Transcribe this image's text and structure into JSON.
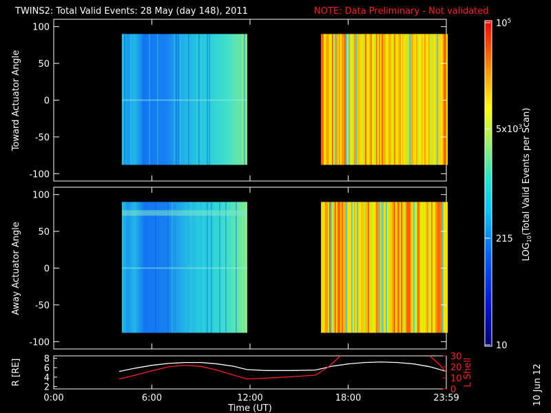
{
  "header": {
    "title": "TWINS2: Total Valid Events: 28 May (day 148), 2011",
    "note": "NOTE: Data Preliminary - Not validated"
  },
  "colors": {
    "background": "#000000",
    "note": "#ff2020",
    "r_line": "#ffffff",
    "lshell_line": "#ff2020",
    "axis": "#ffffff"
  },
  "stamp": "10 Jun 12",
  "chart_data": [
    {
      "type": "heatmap",
      "panel": "toward",
      "ylabel": "Toward Actuator Angle",
      "ylim": [
        -110,
        110
      ],
      "yticks": [
        "100",
        "50",
        "0",
        "-50",
        "-100"
      ],
      "xlim_hours": [
        0,
        24
      ],
      "data_blocks": [
        {
          "start": "04:10",
          "end": "11:50",
          "angle_range": [
            -88,
            90
          ],
          "level": "low",
          "approx_events": [
            150,
            1500
          ]
        },
        {
          "start": "16:20",
          "end": "24:00",
          "angle_range": [
            -88,
            90
          ],
          "level": "high",
          "approx_events": [
            3000,
            60000
          ]
        }
      ]
    },
    {
      "type": "heatmap",
      "panel": "away",
      "ylabel": "Away Actuator Angle",
      "ylim": [
        -110,
        110
      ],
      "yticks": [
        "100",
        "50",
        "0",
        "-50",
        "-100"
      ],
      "xlim_hours": [
        0,
        24
      ],
      "data_blocks": [
        {
          "start": "04:10",
          "end": "11:50",
          "angle_range": [
            -88,
            90
          ],
          "level": "low",
          "approx_events": [
            150,
            1500
          ]
        },
        {
          "start": "16:20",
          "end": "24:00",
          "angle_range": [
            -88,
            90
          ],
          "level": "high",
          "approx_events": [
            3000,
            60000
          ]
        }
      ]
    },
    {
      "type": "line",
      "panel": "orbit",
      "xlabel": "Time (UT)",
      "xticks": [
        "0:00",
        "6:00",
        "12:00",
        "18:00",
        "23:59"
      ],
      "ylabel_left": "R [RE]",
      "ylabel_right": "L Shell",
      "yticks_left": [
        "8",
        "6",
        "4",
        "2"
      ],
      "yticks_right": [
        "30",
        "20",
        "10",
        "0"
      ],
      "ylim_left": [
        1.5,
        8.5
      ],
      "ylim_right": [
        0,
        30
      ],
      "series": [
        {
          "axis": "left",
          "x": [
            4.0,
            5.0,
            6.0,
            7.0,
            8.0,
            9.0,
            10.0,
            11.0,
            11.8,
            13.0,
            14.5,
            16.0,
            17.0,
            18.0,
            19.0,
            20.0,
            21.0,
            22.0,
            23.0,
            24.0
          ],
          "y": [
            5.2,
            5.9,
            6.5,
            6.9,
            7.1,
            7.1,
            6.8,
            6.3,
            5.6,
            5.4,
            5.4,
            5.5,
            6.3,
            6.8,
            7.1,
            7.2,
            7.1,
            6.8,
            6.2,
            5.2
          ]
        },
        {
          "axis": "right",
          "x": [
            4.0,
            5.0,
            6.0,
            7.0,
            8.0,
            9.0,
            10.0,
            11.0,
            11.8,
            13.0,
            14.5,
            16.0,
            16.8,
            17.6,
            22.9,
            23.6,
            24.0
          ],
          "y": [
            9.0,
            12.5,
            16.5,
            20.0,
            21.5,
            20.5,
            17.0,
            12.5,
            9.0,
            9.8,
            11.0,
            12.5,
            20.0,
            31.0,
            31.0,
            22.0,
            15.0
          ]
        }
      ]
    }
  ],
  "colorbar": {
    "label_main": "LOG",
    "label_sub": "10",
    "label_rest": "(Total Valid Events per Scan)",
    "ticks": [
      {
        "base": "10",
        "exp": "5"
      },
      {
        "base": "5x10",
        "exp": "3"
      },
      {
        "base": "215",
        "exp": ""
      },
      {
        "base": "10",
        "exp": ""
      }
    ]
  }
}
